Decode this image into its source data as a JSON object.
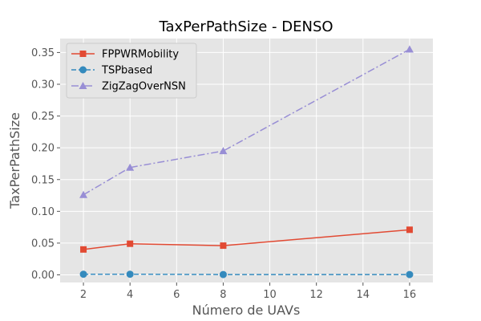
{
  "chart_data": {
    "type": "line",
    "title": "TaxPerPathSize - DENSO",
    "xlabel": "Número de UAVs",
    "ylabel": "TaxPerPathSize",
    "x": [
      2,
      4,
      8,
      16
    ],
    "xlim": [
      1,
      17
    ],
    "ylim": [
      -0.012,
      0.372
    ],
    "xticks": [
      2,
      4,
      6,
      8,
      10,
      12,
      14,
      16
    ],
    "yticks": [
      0.0,
      0.05,
      0.1,
      0.15,
      0.2,
      0.25,
      0.3,
      0.35
    ],
    "ytick_labels": [
      "0.00",
      "0.05",
      "0.10",
      "0.15",
      "0.20",
      "0.25",
      "0.30",
      "0.35"
    ],
    "grid": true,
    "legend_position": "top-left",
    "series": [
      {
        "name": "FPPWRMobility",
        "values": [
          0.04,
          0.049,
          0.046,
          0.071
        ],
        "color": "#e24a33",
        "marker": "square",
        "linestyle": "solid"
      },
      {
        "name": "TSPbased",
        "values": [
          0.001,
          0.001,
          0.0005,
          0.0005
        ],
        "color": "#348abd",
        "marker": "circle",
        "linestyle": "dashed"
      },
      {
        "name": "ZigZagOverNSN",
        "values": [
          0.126,
          0.169,
          0.195,
          0.355
        ],
        "color": "#988ed5",
        "marker": "triangle",
        "linestyle": "dashdot"
      }
    ],
    "colors": {
      "background": "#e5e5e5",
      "grid": "#ffffff"
    }
  }
}
